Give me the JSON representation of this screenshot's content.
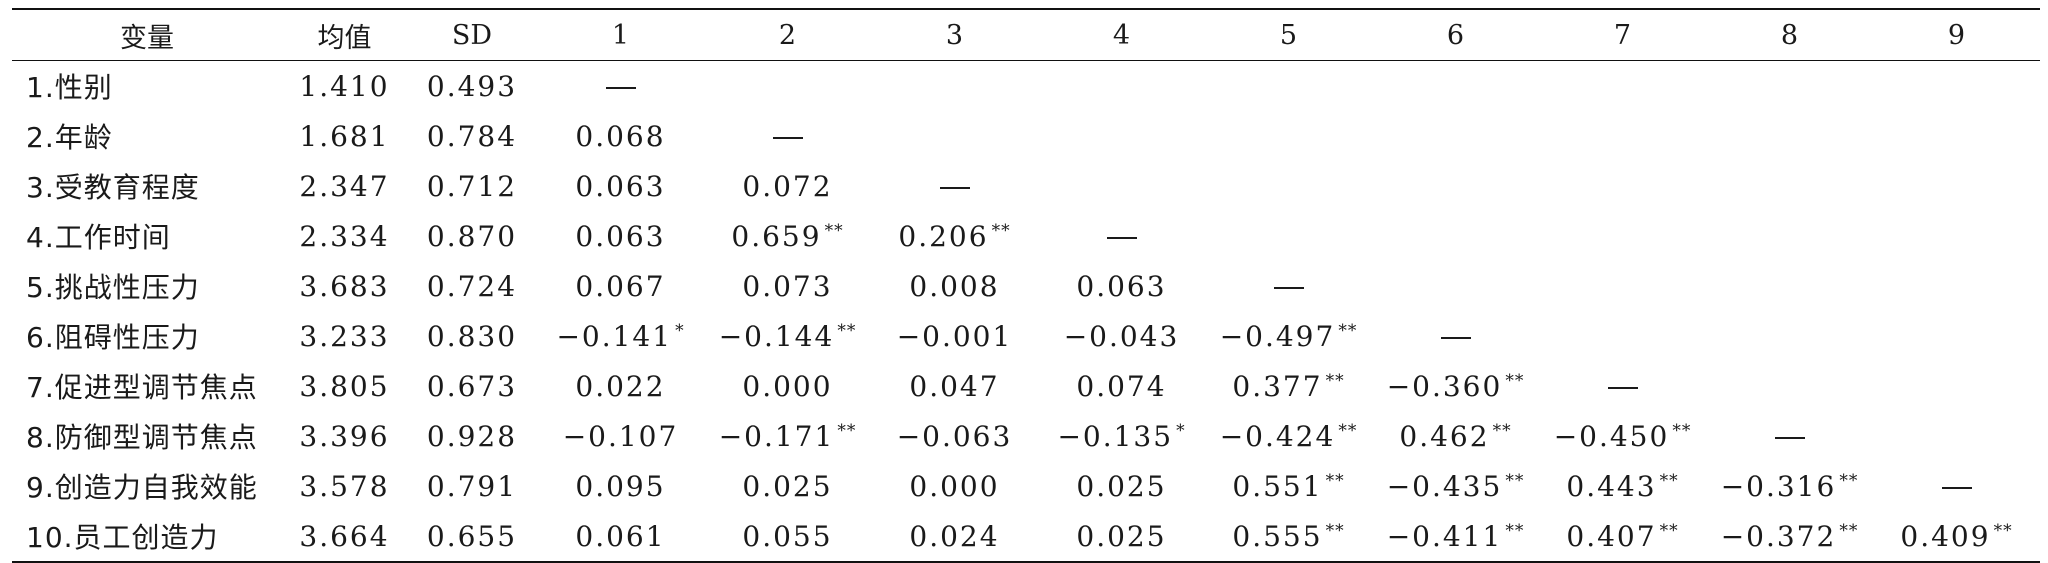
{
  "table": {
    "headers": [
      "变量",
      "均值",
      "SD",
      "1",
      "2",
      "3",
      "4",
      "5",
      "6",
      "7",
      "8",
      "9"
    ],
    "rows": [
      {
        "var": "1.性别",
        "mean": "1.410",
        "sd": "0.493",
        "cells": [
          {
            "dash": true
          },
          {},
          {},
          {},
          {},
          {},
          {},
          {},
          {}
        ]
      },
      {
        "var": "2.年龄",
        "mean": "1.681",
        "sd": "0.784",
        "cells": [
          {
            "v": "0.068",
            "sig": ""
          },
          {
            "dash": true
          },
          {},
          {},
          {},
          {},
          {},
          {},
          {}
        ]
      },
      {
        "var": "3.受教育程度",
        "mean": "2.347",
        "sd": "0.712",
        "cells": [
          {
            "v": "0.063",
            "sig": ""
          },
          {
            "v": "0.072",
            "sig": ""
          },
          {
            "dash": true
          },
          {},
          {},
          {},
          {},
          {},
          {}
        ]
      },
      {
        "var": "4.工作时间",
        "mean": "2.334",
        "sd": "0.870",
        "cells": [
          {
            "v": "0.063",
            "sig": ""
          },
          {
            "v": "0.659",
            "sig": "**"
          },
          {
            "v": "0.206",
            "sig": "**"
          },
          {
            "dash": true
          },
          {},
          {},
          {},
          {},
          {}
        ]
      },
      {
        "var": "5.挑战性压力",
        "mean": "3.683",
        "sd": "0.724",
        "cells": [
          {
            "v": "0.067",
            "sig": ""
          },
          {
            "v": "0.073",
            "sig": ""
          },
          {
            "v": "0.008",
            "sig": ""
          },
          {
            "v": "0.063",
            "sig": ""
          },
          {
            "dash": true
          },
          {},
          {},
          {},
          {}
        ]
      },
      {
        "var": "6.阻碍性压力",
        "mean": "3.233",
        "sd": "0.830",
        "cells": [
          {
            "v": "−0.141",
            "sig": "*"
          },
          {
            "v": "−0.144",
            "sig": "**"
          },
          {
            "v": "−0.001",
            "sig": ""
          },
          {
            "v": "−0.043",
            "sig": ""
          },
          {
            "v": "−0.497",
            "sig": "**"
          },
          {
            "dash": true
          },
          {},
          {},
          {}
        ]
      },
      {
        "var": "7.促进型调节焦点",
        "mean": "3.805",
        "sd": "0.673",
        "cells": [
          {
            "v": "0.022",
            "sig": ""
          },
          {
            "v": "0.000",
            "sig": ""
          },
          {
            "v": "0.047",
            "sig": ""
          },
          {
            "v": "0.074",
            "sig": ""
          },
          {
            "v": "0.377",
            "sig": "**"
          },
          {
            "v": "−0.360",
            "sig": "**"
          },
          {
            "dash": true
          },
          {},
          {}
        ]
      },
      {
        "var": "8.防御型调节焦点",
        "mean": "3.396",
        "sd": "0.928",
        "cells": [
          {
            "v": "−0.107",
            "sig": ""
          },
          {
            "v": "−0.171",
            "sig": "**"
          },
          {
            "v": "−0.063",
            "sig": ""
          },
          {
            "v": "−0.135",
            "sig": "*"
          },
          {
            "v": "−0.424",
            "sig": "**"
          },
          {
            "v": "0.462",
            "sig": "**"
          },
          {
            "v": "−0.450",
            "sig": "**"
          },
          {
            "dash": true
          },
          {}
        ]
      },
      {
        "var": "9.创造力自我效能",
        "mean": "3.578",
        "sd": "0.791",
        "cells": [
          {
            "v": "0.095",
            "sig": ""
          },
          {
            "v": "0.025",
            "sig": ""
          },
          {
            "v": "0.000",
            "sig": ""
          },
          {
            "v": "0.025",
            "sig": ""
          },
          {
            "v": "0.551",
            "sig": "**"
          },
          {
            "v": "−0.435",
            "sig": "**"
          },
          {
            "v": "0.443",
            "sig": "**"
          },
          {
            "v": "−0.316",
            "sig": "**"
          },
          {
            "dash": true
          }
        ]
      },
      {
        "var": "10.员工创造力",
        "mean": "3.664",
        "sd": "0.655",
        "cells": [
          {
            "v": "0.061",
            "sig": ""
          },
          {
            "v": "0.055",
            "sig": ""
          },
          {
            "v": "0.024",
            "sig": ""
          },
          {
            "v": "0.025",
            "sig": ""
          },
          {
            "v": "0.555",
            "sig": "**"
          },
          {
            "v": "−0.411",
            "sig": "**"
          },
          {
            "v": "0.407",
            "sig": "**"
          },
          {
            "v": "−0.372",
            "sig": "**"
          },
          {
            "v": "0.409",
            "sig": "**"
          }
        ]
      }
    ]
  }
}
